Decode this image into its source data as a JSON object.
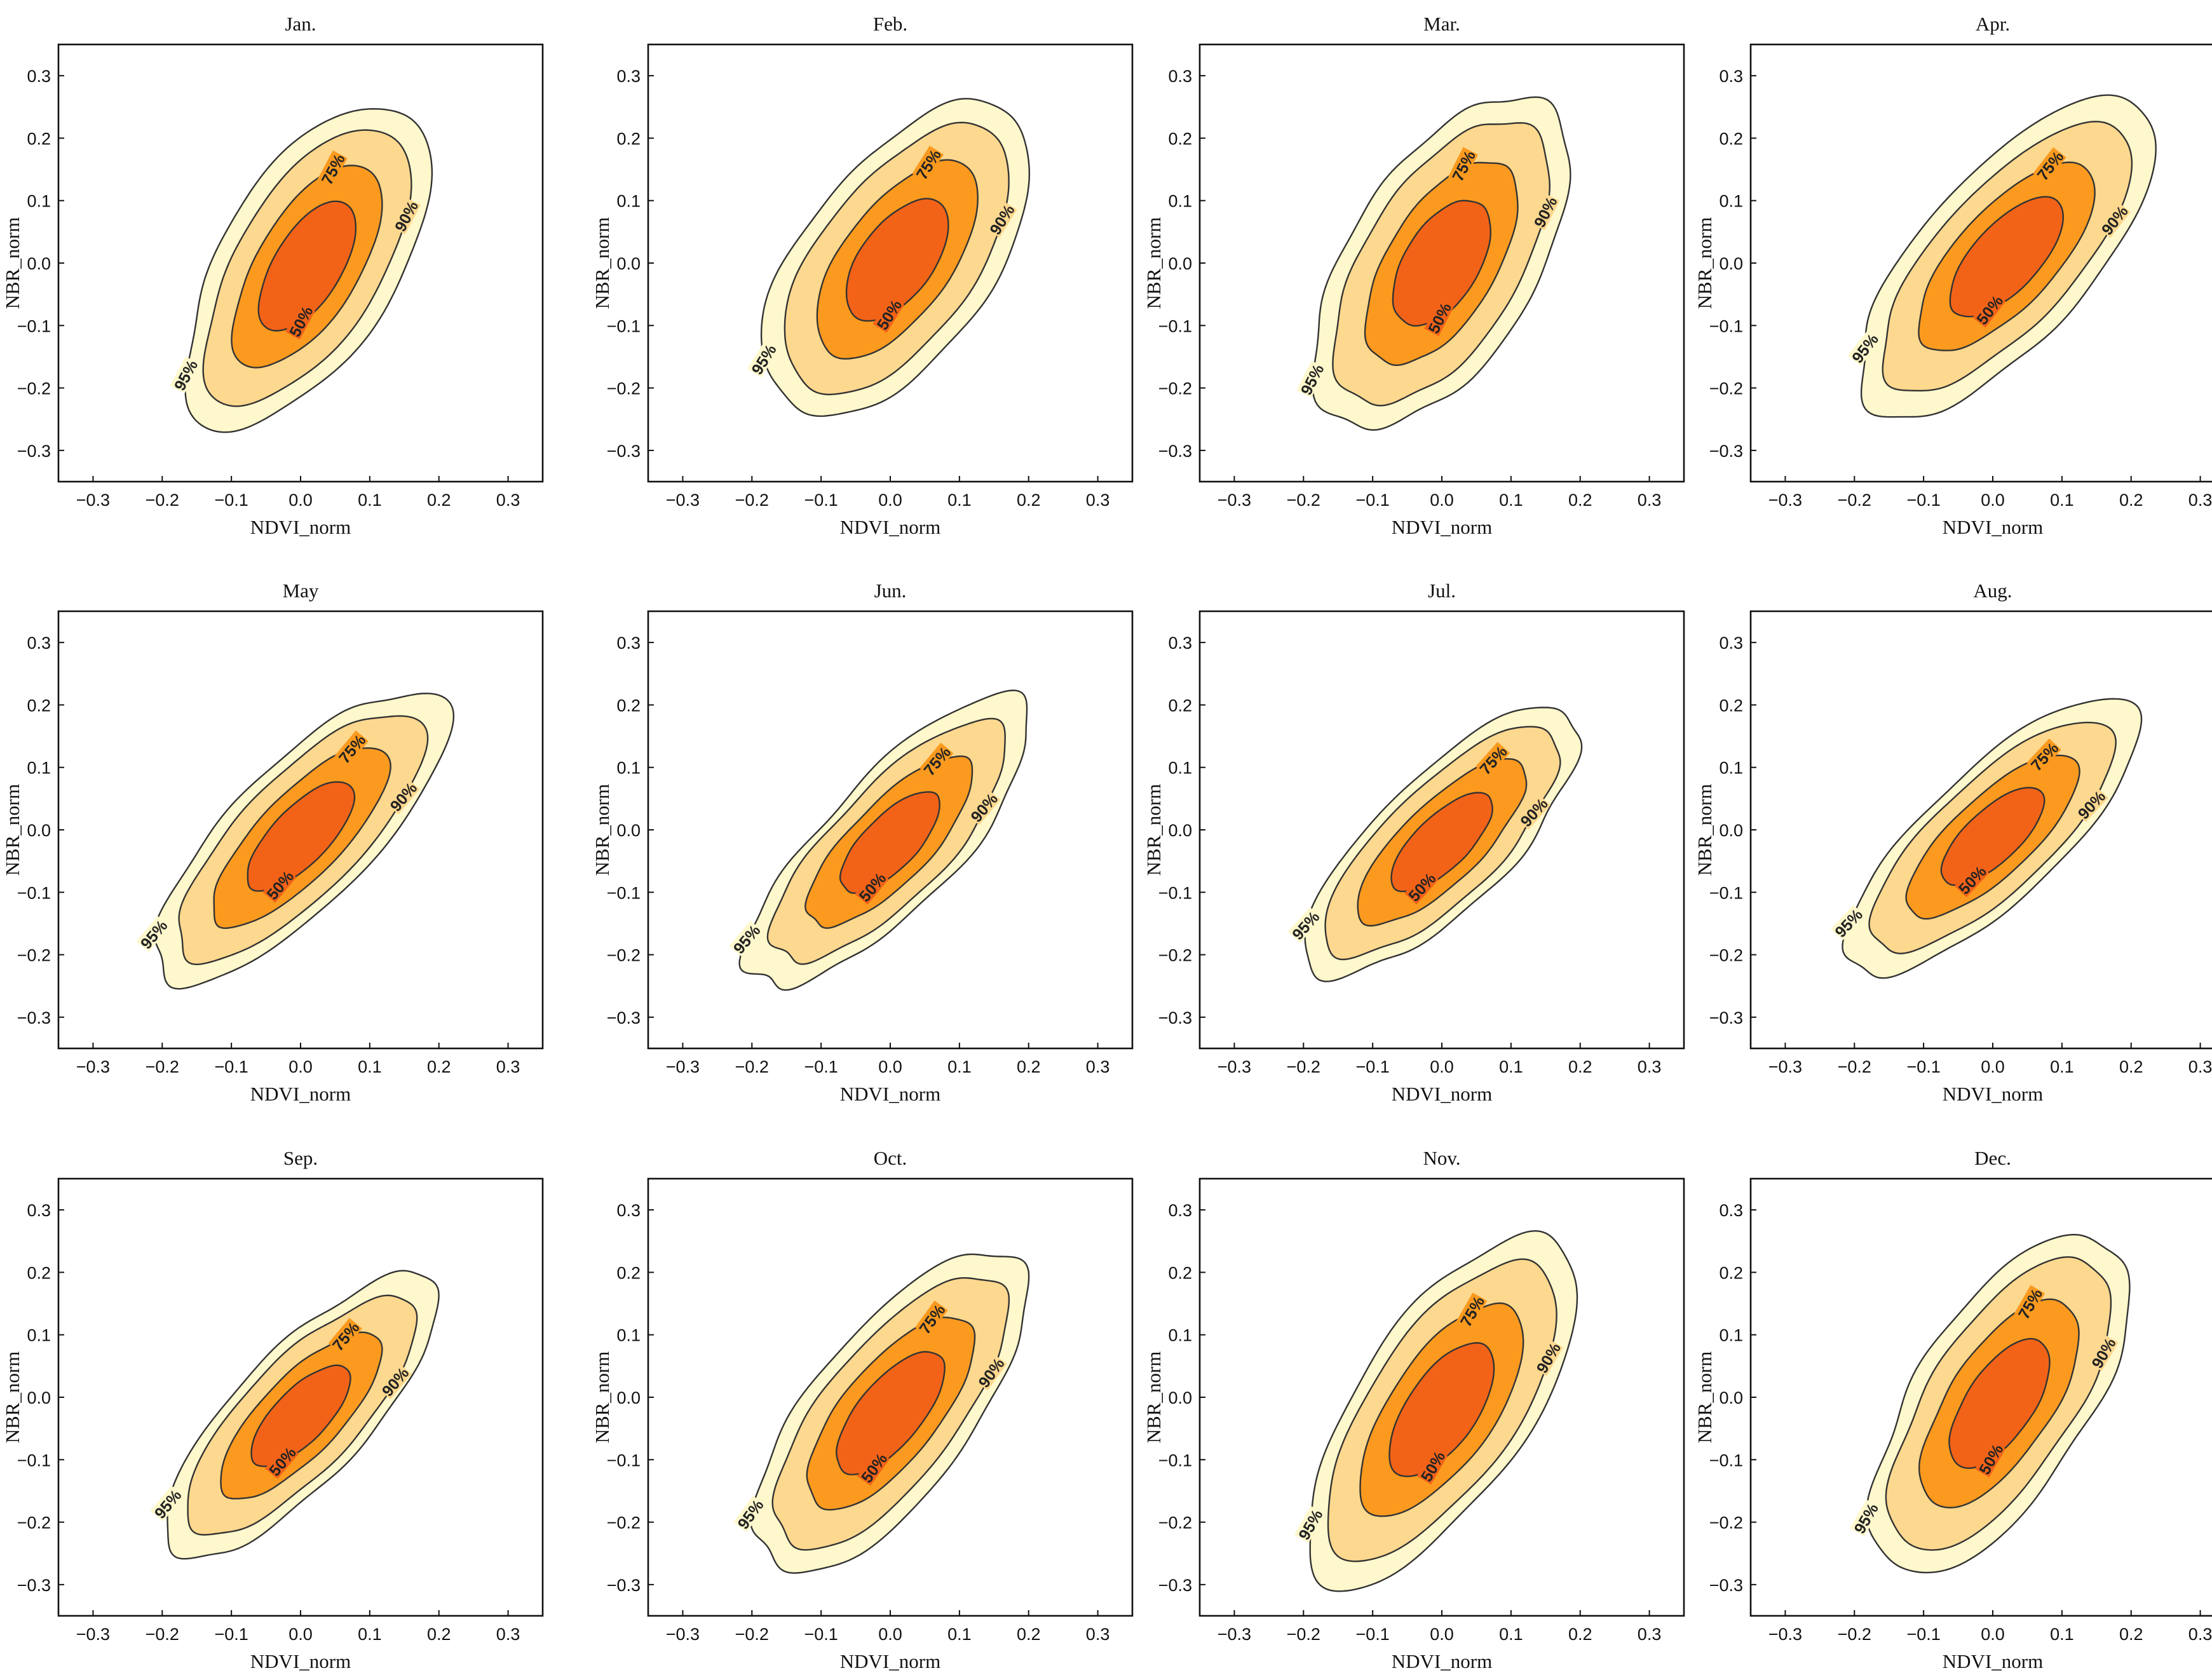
{
  "chart_data": {
    "type": "contour",
    "title": "",
    "xlabel": "NDVI_norm",
    "ylabel": "NBR_norm",
    "xlim": [
      -0.35,
      0.35
    ],
    "ylim": [
      -0.35,
      0.35
    ],
    "ticks": [
      -0.3,
      -0.2,
      -0.1,
      0.0,
      0.1,
      0.2,
      0.3
    ],
    "tick_labels": [
      "−0.3",
      "−0.2",
      "−0.1",
      "0.0",
      "0.1",
      "0.2",
      "0.3"
    ],
    "levels": [
      {
        "label": "95%",
        "color": "#fff8cc"
      },
      {
        "label": "90%",
        "color": "#fdd88f"
      },
      {
        "label": "75%",
        "color": "#fb9a1f"
      },
      {
        "label": "50%",
        "color": "#f26318"
      }
    ],
    "line_color": "#333333",
    "panels": [
      {
        "title": "Jan.",
        "center": [
          0.01,
          -0.005
        ],
        "angle": 62,
        "major": [
          0.285,
          0.245,
          0.18,
          0.115
        ],
        "minor": [
          0.13,
          0.106,
          0.075,
          0.05
        ],
        "seed": 1
      },
      {
        "title": "Feb.",
        "center": [
          0.01,
          0.005
        ],
        "angle": 58,
        "major": [
          0.285,
          0.245,
          0.18,
          0.11
        ],
        "minor": [
          0.14,
          0.115,
          0.08,
          0.054
        ],
        "seed": 2
      },
      {
        "title": "Mar.",
        "center": [
          0.0,
          0.0
        ],
        "angle": 63,
        "major": [
          0.29,
          0.25,
          0.18,
          0.11
        ],
        "minor": [
          0.14,
          0.115,
          0.08,
          0.055
        ],
        "seed": 3
      },
      {
        "title": "Apr.",
        "center": [
          0.02,
          0.01
        ],
        "angle": 52,
        "major": [
          0.3,
          0.255,
          0.18,
          0.115
        ],
        "minor": [
          0.13,
          0.105,
          0.075,
          0.05
        ],
        "seed": 4
      },
      {
        "title": "May",
        "center": [
          0.0,
          -0.01
        ],
        "angle": 50,
        "major": [
          0.3,
          0.255,
          0.185,
          0.11
        ],
        "minor": [
          0.105,
          0.088,
          0.062,
          0.042
        ],
        "seed": 5
      },
      {
        "title": "Jun.",
        "center": [
          0.0,
          -0.02
        ],
        "angle": 50,
        "major": [
          0.29,
          0.24,
          0.17,
          0.1
        ],
        "minor": [
          0.1,
          0.085,
          0.06,
          0.04
        ],
        "seed": 6
      },
      {
        "title": "Jul.",
        "center": [
          0.0,
          -0.02
        ],
        "angle": 48,
        "major": [
          0.275,
          0.235,
          0.17,
          0.1
        ],
        "minor": [
          0.1,
          0.085,
          0.06,
          0.04
        ],
        "seed": 7
      },
      {
        "title": "Aug.",
        "center": [
          0.0,
          -0.01
        ],
        "angle": 47,
        "major": [
          0.29,
          0.24,
          0.17,
          0.1
        ],
        "minor": [
          0.1,
          0.085,
          0.06,
          0.04
        ],
        "seed": 8
      },
      {
        "title": "Sep.",
        "center": [
          0.0,
          -0.03
        ],
        "angle": 50,
        "major": [
          0.28,
          0.235,
          0.165,
          0.1
        ],
        "minor": [
          0.1,
          0.085,
          0.06,
          0.04
        ],
        "seed": 9
      },
      {
        "title": "Oct.",
        "center": [
          0.0,
          -0.025
        ],
        "angle": 54,
        "major": [
          0.3,
          0.255,
          0.18,
          0.115
        ],
        "minor": [
          0.12,
          0.1,
          0.072,
          0.048
        ],
        "seed": 10
      },
      {
        "title": "Nov.",
        "center": [
          0.0,
          -0.02
        ],
        "angle": 60,
        "major": [
          0.31,
          0.265,
          0.19,
          0.12
        ],
        "minor": [
          0.13,
          0.11,
          0.078,
          0.052
        ],
        "seed": 11
      },
      {
        "title": "Dec.",
        "center": [
          0.01,
          -0.01
        ],
        "angle": 60,
        "major": [
          0.3,
          0.26,
          0.185,
          0.115
        ],
        "minor": [
          0.13,
          0.108,
          0.077,
          0.05
        ],
        "seed": 12
      }
    ]
  }
}
